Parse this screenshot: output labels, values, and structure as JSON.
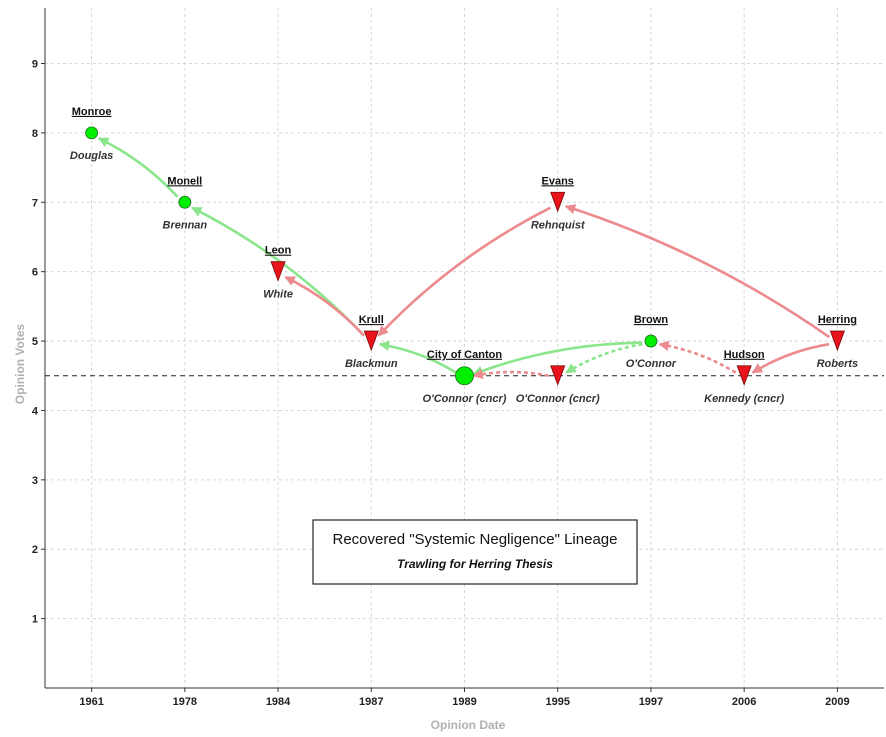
{
  "chart_data": {
    "type": "scatter",
    "title": "Recovered \"Systemic Negligence\" Lineage",
    "subtitle": "Trawling for Herring Thesis",
    "xlabel": "Opinion Date",
    "ylabel": "Opinion Votes",
    "x_categories": [
      "1961",
      "1978",
      "1984",
      "1987",
      "1989",
      "1995",
      "1997",
      "2006",
      "2009"
    ],
    "y_ticks": [
      1,
      2,
      3,
      4,
      5,
      6,
      7,
      8,
      9
    ],
    "ylim": [
      0,
      9.8
    ],
    "grid": true,
    "reference_line": {
      "y": 4.5,
      "style": "dashed"
    },
    "legend": "center-bottom",
    "colors": {
      "positive": "#00ee00",
      "negative": "#e8131b",
      "positive_arrow": "#8be58b",
      "negative_arrow": "#ec8a8e"
    },
    "points": [
      {
        "id": "monroe",
        "case": "Monroe",
        "author": "Douglas",
        "x": "1961",
        "y": 8,
        "marker": "circle",
        "color": "positive"
      },
      {
        "id": "monell",
        "case": "Monell",
        "author": "Brennan",
        "x": "1978",
        "y": 7,
        "marker": "circle",
        "color": "positive"
      },
      {
        "id": "leon",
        "case": "Leon",
        "author": "White",
        "x": "1984",
        "y": 6,
        "marker": "triangle",
        "color": "negative"
      },
      {
        "id": "krull",
        "case": "Krull",
        "author": "Blackmun",
        "x": "1987",
        "y": 5,
        "marker": "triangle",
        "color": "negative"
      },
      {
        "id": "canton",
        "case": "City of Canton",
        "author": "O'Connor (cncr)",
        "x": "1989",
        "y": 4.5,
        "marker": "circle-large",
        "color": "positive"
      },
      {
        "id": "evans",
        "case": "Evans",
        "author": "Rehnquist",
        "x": "1995",
        "y": 7,
        "marker": "triangle",
        "color": "negative"
      },
      {
        "id": "evans-cncr",
        "case": "",
        "author": "O'Connor (cncr)",
        "x": "1995",
        "y": 4.5,
        "marker": "triangle",
        "color": "negative"
      },
      {
        "id": "brown",
        "case": "Brown",
        "author": "O'Connor",
        "x": "1997",
        "y": 5,
        "marker": "circle",
        "color": "positive"
      },
      {
        "id": "hudson",
        "case": "Hudson",
        "author": "Kennedy (cncr)",
        "x": "2006",
        "y": 4.5,
        "marker": "triangle",
        "color": "negative"
      },
      {
        "id": "herring",
        "case": "Herring",
        "author": "Roberts",
        "x": "2009",
        "y": 5,
        "marker": "triangle",
        "color": "negative"
      }
    ],
    "arrows": [
      {
        "from": "monell",
        "to": "monroe",
        "color": "positive",
        "style": "solid"
      },
      {
        "from": "krull",
        "to": "monell",
        "color": "positive",
        "style": "solid"
      },
      {
        "from": "krull",
        "to": "leon",
        "color": "negative",
        "style": "solid"
      },
      {
        "from": "canton",
        "to": "krull",
        "color": "positive",
        "style": "solid"
      },
      {
        "from": "evans",
        "to": "krull",
        "color": "negative",
        "style": "solid"
      },
      {
        "from": "brown",
        "to": "canton",
        "color": "positive",
        "style": "solid"
      },
      {
        "from": "brown",
        "to": "evans-cncr",
        "color": "positive",
        "style": "dashed"
      },
      {
        "from": "evans-cncr",
        "to": "canton",
        "color": "negative",
        "style": "dashed"
      },
      {
        "from": "hudson",
        "to": "brown",
        "color": "negative",
        "style": "dashed"
      },
      {
        "from": "herring",
        "to": "evans",
        "color": "negative",
        "style": "solid"
      },
      {
        "from": "herring",
        "to": "hudson",
        "color": "negative",
        "style": "solid"
      }
    ]
  }
}
